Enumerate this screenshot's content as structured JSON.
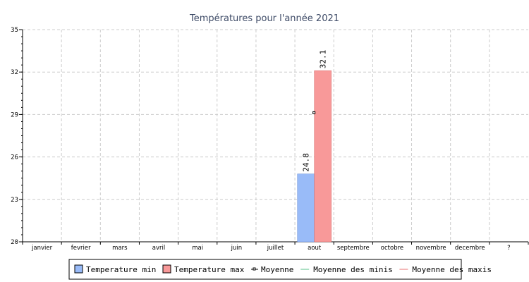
{
  "chart_data": {
    "type": "bar",
    "title": "Températures pour l'année 2021",
    "categories": [
      "janvier",
      "fevrier",
      "mars",
      "avril",
      "mai",
      "juin",
      "juillet",
      "aout",
      "septembre",
      "octobre",
      "novembre",
      "decembre",
      "?"
    ],
    "series": [
      {
        "name": "Temperature min",
        "color": "#99bbf8",
        "border": "#6a8fd6",
        "values": [
          null,
          null,
          null,
          null,
          null,
          null,
          null,
          24.8,
          null,
          null,
          null,
          null,
          null
        ]
      },
      {
        "name": "Temperature max",
        "color": "#f89999",
        "border": "#d46a6a",
        "values": [
          null,
          null,
          null,
          null,
          null,
          null,
          null,
          32.1,
          null,
          null,
          null,
          null,
          null
        ]
      }
    ],
    "moyenne": {
      "name": "Moyenne",
      "values": [
        null,
        null,
        null,
        null,
        null,
        null,
        null,
        29.1,
        null,
        null,
        null,
        null,
        null
      ]
    },
    "lines": [
      {
        "name": "Moyenne des minis",
        "color": "#8fd6b0"
      },
      {
        "name": "Moyenne des maxis",
        "color": "#f0a0a0"
      }
    ],
    "ylim": [
      20,
      35
    ],
    "yticks": [
      20,
      23,
      26,
      29,
      32,
      35
    ],
    "grid": true,
    "legend_position": "bottom"
  }
}
